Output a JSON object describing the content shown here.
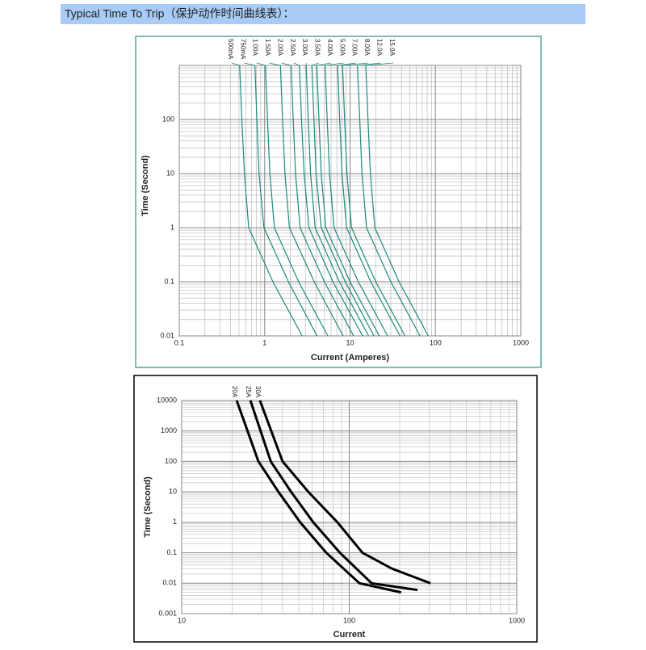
{
  "header": {
    "title": "Typical Time To Trip（保护动作时间曲线表）："
  },
  "chart_data": [
    {
      "type": "line",
      "x_label": "Current  (Amperes)",
      "y_label": "Time (Second)",
      "log_x": true,
      "log_y": true,
      "grid": true,
      "xlim": [
        0.1,
        1000
      ],
      "ylim": [
        0.01,
        1000
      ],
      "xticks": [
        0.1,
        1,
        10,
        100,
        1000
      ],
      "yticks": [
        0.01,
        0.1,
        1,
        10,
        100
      ],
      "series": [
        {
          "name": "500mA",
          "color": "#1a8a7a",
          "x": [
            0.51,
            0.54,
            0.58,
            0.65,
            1.25,
            2.75
          ],
          "values": [
            1000,
            100,
            10,
            1,
            0.1,
            0.01
          ]
        },
        {
          "name": "750mA",
          "color": "#1a8a7a",
          "x": [
            0.77,
            0.81,
            0.86,
            0.98,
            1.9,
            4.1
          ],
          "values": [
            1000,
            100,
            10,
            1,
            0.1,
            0.01
          ]
        },
        {
          "name": "1.00A",
          "color": "#1a8a7a",
          "x": [
            1.02,
            1.08,
            1.15,
            1.3,
            2.5,
            5.5
          ],
          "values": [
            1000,
            100,
            10,
            1,
            0.1,
            0.01
          ]
        },
        {
          "name": "1.50A",
          "color": "#1a8a7a",
          "x": [
            1.53,
            1.62,
            1.73,
            1.95,
            3.8,
            8.3
          ],
          "values": [
            1000,
            100,
            10,
            1,
            0.1,
            0.01
          ]
        },
        {
          "name": "2.00A",
          "color": "#1a8a7a",
          "x": [
            2.04,
            2.16,
            2.3,
            2.6,
            5,
            11
          ],
          "values": [
            1000,
            100,
            10,
            1,
            0.1,
            0.01
          ]
        },
        {
          "name": "2.50A",
          "color": "#1a8a7a",
          "x": [
            2.55,
            2.7,
            2.9,
            3.3,
            6.3,
            14
          ],
          "values": [
            1000,
            100,
            10,
            1,
            0.1,
            0.01
          ]
        },
        {
          "name": "3.00A",
          "color": "#1a8a7a",
          "x": [
            3.06,
            3.24,
            3.45,
            3.9,
            7.5,
            16.5
          ],
          "values": [
            1000,
            100,
            10,
            1,
            0.1,
            0.01
          ]
        },
        {
          "name": "3.50A",
          "color": "#1a8a7a",
          "x": [
            3.57,
            3.78,
            4.0,
            4.6,
            8.8,
            19
          ],
          "values": [
            1000,
            100,
            10,
            1,
            0.1,
            0.01
          ]
        },
        {
          "name": "4.00A",
          "color": "#1a8a7a",
          "x": [
            4.08,
            4.32,
            4.6,
            5.2,
            10,
            22
          ],
          "values": [
            1000,
            100,
            10,
            1,
            0.1,
            0.01
          ]
        },
        {
          "name": "5.00A",
          "color": "#1a8a7a",
          "x": [
            5.1,
            5.4,
            5.75,
            6.5,
            12.5,
            27.5
          ],
          "values": [
            1000,
            100,
            10,
            1,
            0.1,
            0.01
          ]
        },
        {
          "name": "7.00A",
          "color": "#1a8a7a",
          "x": [
            7.14,
            7.56,
            8.05,
            9.1,
            17.5,
            38.5
          ],
          "values": [
            1000,
            100,
            10,
            1,
            0.1,
            0.01
          ]
        },
        {
          "name": "8.00A",
          "color": "#1a8a7a",
          "x": [
            8.16,
            8.64,
            9.2,
            10.4,
            20,
            44
          ],
          "values": [
            1000,
            100,
            10,
            1,
            0.1,
            0.01
          ]
        },
        {
          "name": "12.0A",
          "color": "#1a8a7a",
          "x": [
            12.2,
            13,
            13.8,
            15.6,
            30,
            66
          ],
          "values": [
            1000,
            100,
            10,
            1,
            0.1,
            0.01
          ]
        },
        {
          "name": "15.0A",
          "color": "#1a8a7a",
          "x": [
            15.3,
            16.2,
            17.3,
            19.5,
            37.5,
            82.5
          ],
          "values": [
            1000,
            100,
            10,
            1,
            0.1,
            0.01
          ]
        }
      ]
    },
    {
      "type": "line",
      "x_label": "Current",
      "y_label": "Time (Second)",
      "log_x": true,
      "log_y": true,
      "grid": true,
      "xlim": [
        10,
        1000
      ],
      "ylim": [
        0.001,
        10000
      ],
      "xticks": [
        10,
        100,
        1000
      ],
      "yticks": [
        0.001,
        0.01,
        0.1,
        1,
        10,
        100,
        1000,
        10000
      ],
      "series": [
        {
          "name": "20A",
          "color": "#000000",
          "x": [
            21.3,
            28.7,
            37.8,
            51,
            73,
            115,
            204
          ],
          "values": [
            10000,
            100,
            10,
            1,
            0.1,
            0.01,
            0.005
          ]
        },
        {
          "name": "25A",
          "color": "#000000",
          "x": [
            25.7,
            34,
            45,
            61,
            88,
            136,
            255
          ],
          "values": [
            10000,
            100,
            10,
            1,
            0.1,
            0.01,
            0.006
          ]
        },
        {
          "name": "30A",
          "color": "#000000",
          "x": [
            29.3,
            40,
            57,
            85,
            120,
            180,
            305
          ],
          "values": [
            10000,
            100,
            10,
            1,
            0.1,
            0.03,
            0.01
          ]
        }
      ]
    }
  ]
}
